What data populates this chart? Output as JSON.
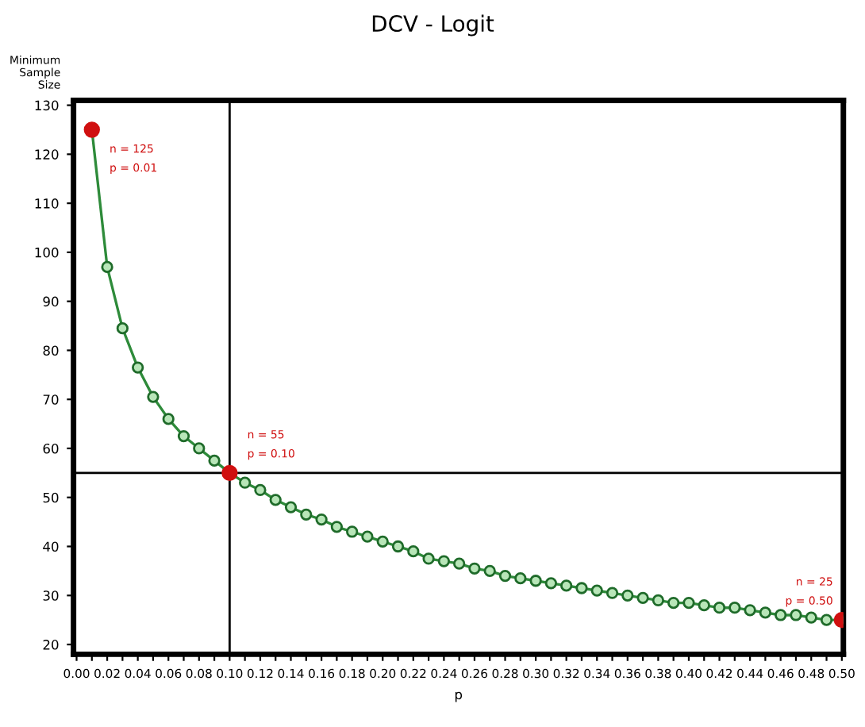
{
  "chart_data": {
    "type": "line",
    "title": "DCV - Logit",
    "xlabel": "p",
    "ylabel": "Minimum\nSample\nSize",
    "xlim": [
      -0.002,
      0.501
    ],
    "ylim": [
      18,
      131
    ],
    "xticks": [
      {
        "value": 0,
        "label": "0.00"
      },
      {
        "value": 0.01,
        "label": null
      },
      {
        "value": 0.02,
        "label": "0.02"
      },
      {
        "value": 0.03,
        "label": null
      },
      {
        "value": 0.04,
        "label": "0.04"
      },
      {
        "value": 0.05,
        "label": null
      },
      {
        "value": 0.06,
        "label": "0.06"
      },
      {
        "value": 0.07,
        "label": null
      },
      {
        "value": 0.08,
        "label": "0.08"
      },
      {
        "value": 0.09,
        "label": null
      },
      {
        "value": 0.1,
        "label": "0.10"
      },
      {
        "value": 0.11,
        "label": null
      },
      {
        "value": 0.12,
        "label": "0.12"
      },
      {
        "value": 0.13,
        "label": null
      },
      {
        "value": 0.14,
        "label": "0.14"
      },
      {
        "value": 0.15,
        "label": null
      },
      {
        "value": 0.16,
        "label": "0.16"
      },
      {
        "value": 0.17,
        "label": null
      },
      {
        "value": 0.18,
        "label": "0.18"
      },
      {
        "value": 0.19,
        "label": null
      },
      {
        "value": 0.2,
        "label": "0.20"
      },
      {
        "value": 0.21,
        "label": null
      },
      {
        "value": 0.22,
        "label": "0.22"
      },
      {
        "value": 0.23,
        "label": null
      },
      {
        "value": 0.24,
        "label": "0.24"
      },
      {
        "value": 0.25,
        "label": null
      },
      {
        "value": 0.26,
        "label": "0.26"
      },
      {
        "value": 0.27,
        "label": null
      },
      {
        "value": 0.28,
        "label": "0.28"
      },
      {
        "value": 0.29,
        "label": null
      },
      {
        "value": 0.3,
        "label": "0.30"
      },
      {
        "value": 0.31,
        "label": null
      },
      {
        "value": 0.32,
        "label": "0.32"
      },
      {
        "value": 0.33,
        "label": null
      },
      {
        "value": 0.34,
        "label": "0.34"
      },
      {
        "value": 0.35,
        "label": null
      },
      {
        "value": 0.36,
        "label": "0.36"
      },
      {
        "value": 0.37,
        "label": null
      },
      {
        "value": 0.38,
        "label": "0.38"
      },
      {
        "value": 0.39,
        "label": null
      },
      {
        "value": 0.4,
        "label": "0.40"
      },
      {
        "value": 0.41,
        "label": null
      },
      {
        "value": 0.42,
        "label": "0.42"
      },
      {
        "value": 0.43,
        "label": null
      },
      {
        "value": 0.44,
        "label": "0.44"
      },
      {
        "value": 0.45,
        "label": null
      },
      {
        "value": 0.46,
        "label": "0.46"
      },
      {
        "value": 0.47,
        "label": null
      },
      {
        "value": 0.48,
        "label": "0.48"
      },
      {
        "value": 0.49,
        "label": null
      },
      {
        "value": 0.5,
        "label": "0.50"
      }
    ],
    "yticks": [
      20,
      30,
      40,
      50,
      60,
      70,
      80,
      90,
      100,
      110,
      120,
      130
    ],
    "grid": false,
    "legend": false,
    "series": [
      {
        "color": "#2e8b3a",
        "marker": "circle",
        "line_style": "solid",
        "x": [
          0.01,
          0.02,
          0.03,
          0.04,
          0.05,
          0.06,
          0.07,
          0.08,
          0.09,
          0.1,
          0.11,
          0.12,
          0.13,
          0.14,
          0.15,
          0.16,
          0.17,
          0.18,
          0.19,
          0.2,
          0.21,
          0.22,
          0.23,
          0.24,
          0.25,
          0.26,
          0.27,
          0.28,
          0.29,
          0.3,
          0.31,
          0.32,
          0.33,
          0.34,
          0.35,
          0.36,
          0.37,
          0.38,
          0.39,
          0.4,
          0.41,
          0.42,
          0.43,
          0.44,
          0.45,
          0.46,
          0.47,
          0.48,
          0.49,
          0.5
        ],
        "values": [
          125,
          97,
          84.5,
          76.5,
          70.5,
          66,
          62.5,
          60,
          57.5,
          55,
          53,
          51.5,
          49.5,
          48,
          46.5,
          45.5,
          44,
          43,
          42,
          41,
          40,
          39,
          37.5,
          37,
          36.5,
          35.5,
          35,
          34,
          33.5,
          33,
          32.5,
          32,
          31.5,
          31,
          30.5,
          30,
          29.5,
          29,
          28.5,
          28.5,
          28,
          27.5,
          27.5,
          27,
          26.5,
          26,
          26,
          25.5,
          25,
          25
        ]
      },
      {
        "type": "scatter",
        "color": "#d01010",
        "marker": "circle",
        "x": [
          0.01,
          0.1,
          0.5
        ],
        "values": [
          125,
          55,
          25
        ]
      }
    ],
    "ref_lines": [
      {
        "axis": "x",
        "value": 0.1,
        "color": "#000000"
      },
      {
        "axis": "y",
        "value": 55,
        "color": "#000000"
      }
    ],
    "annotations": [
      {
        "text": "n = 125\np = 0.01",
        "x": 0.01,
        "y": 125
      },
      {
        "text": "n = 55\np = 0.10",
        "x": 0.1,
        "y": 55
      },
      {
        "text": "n = 25\np = 0.50",
        "x": 0.5,
        "y": 25
      }
    ]
  }
}
